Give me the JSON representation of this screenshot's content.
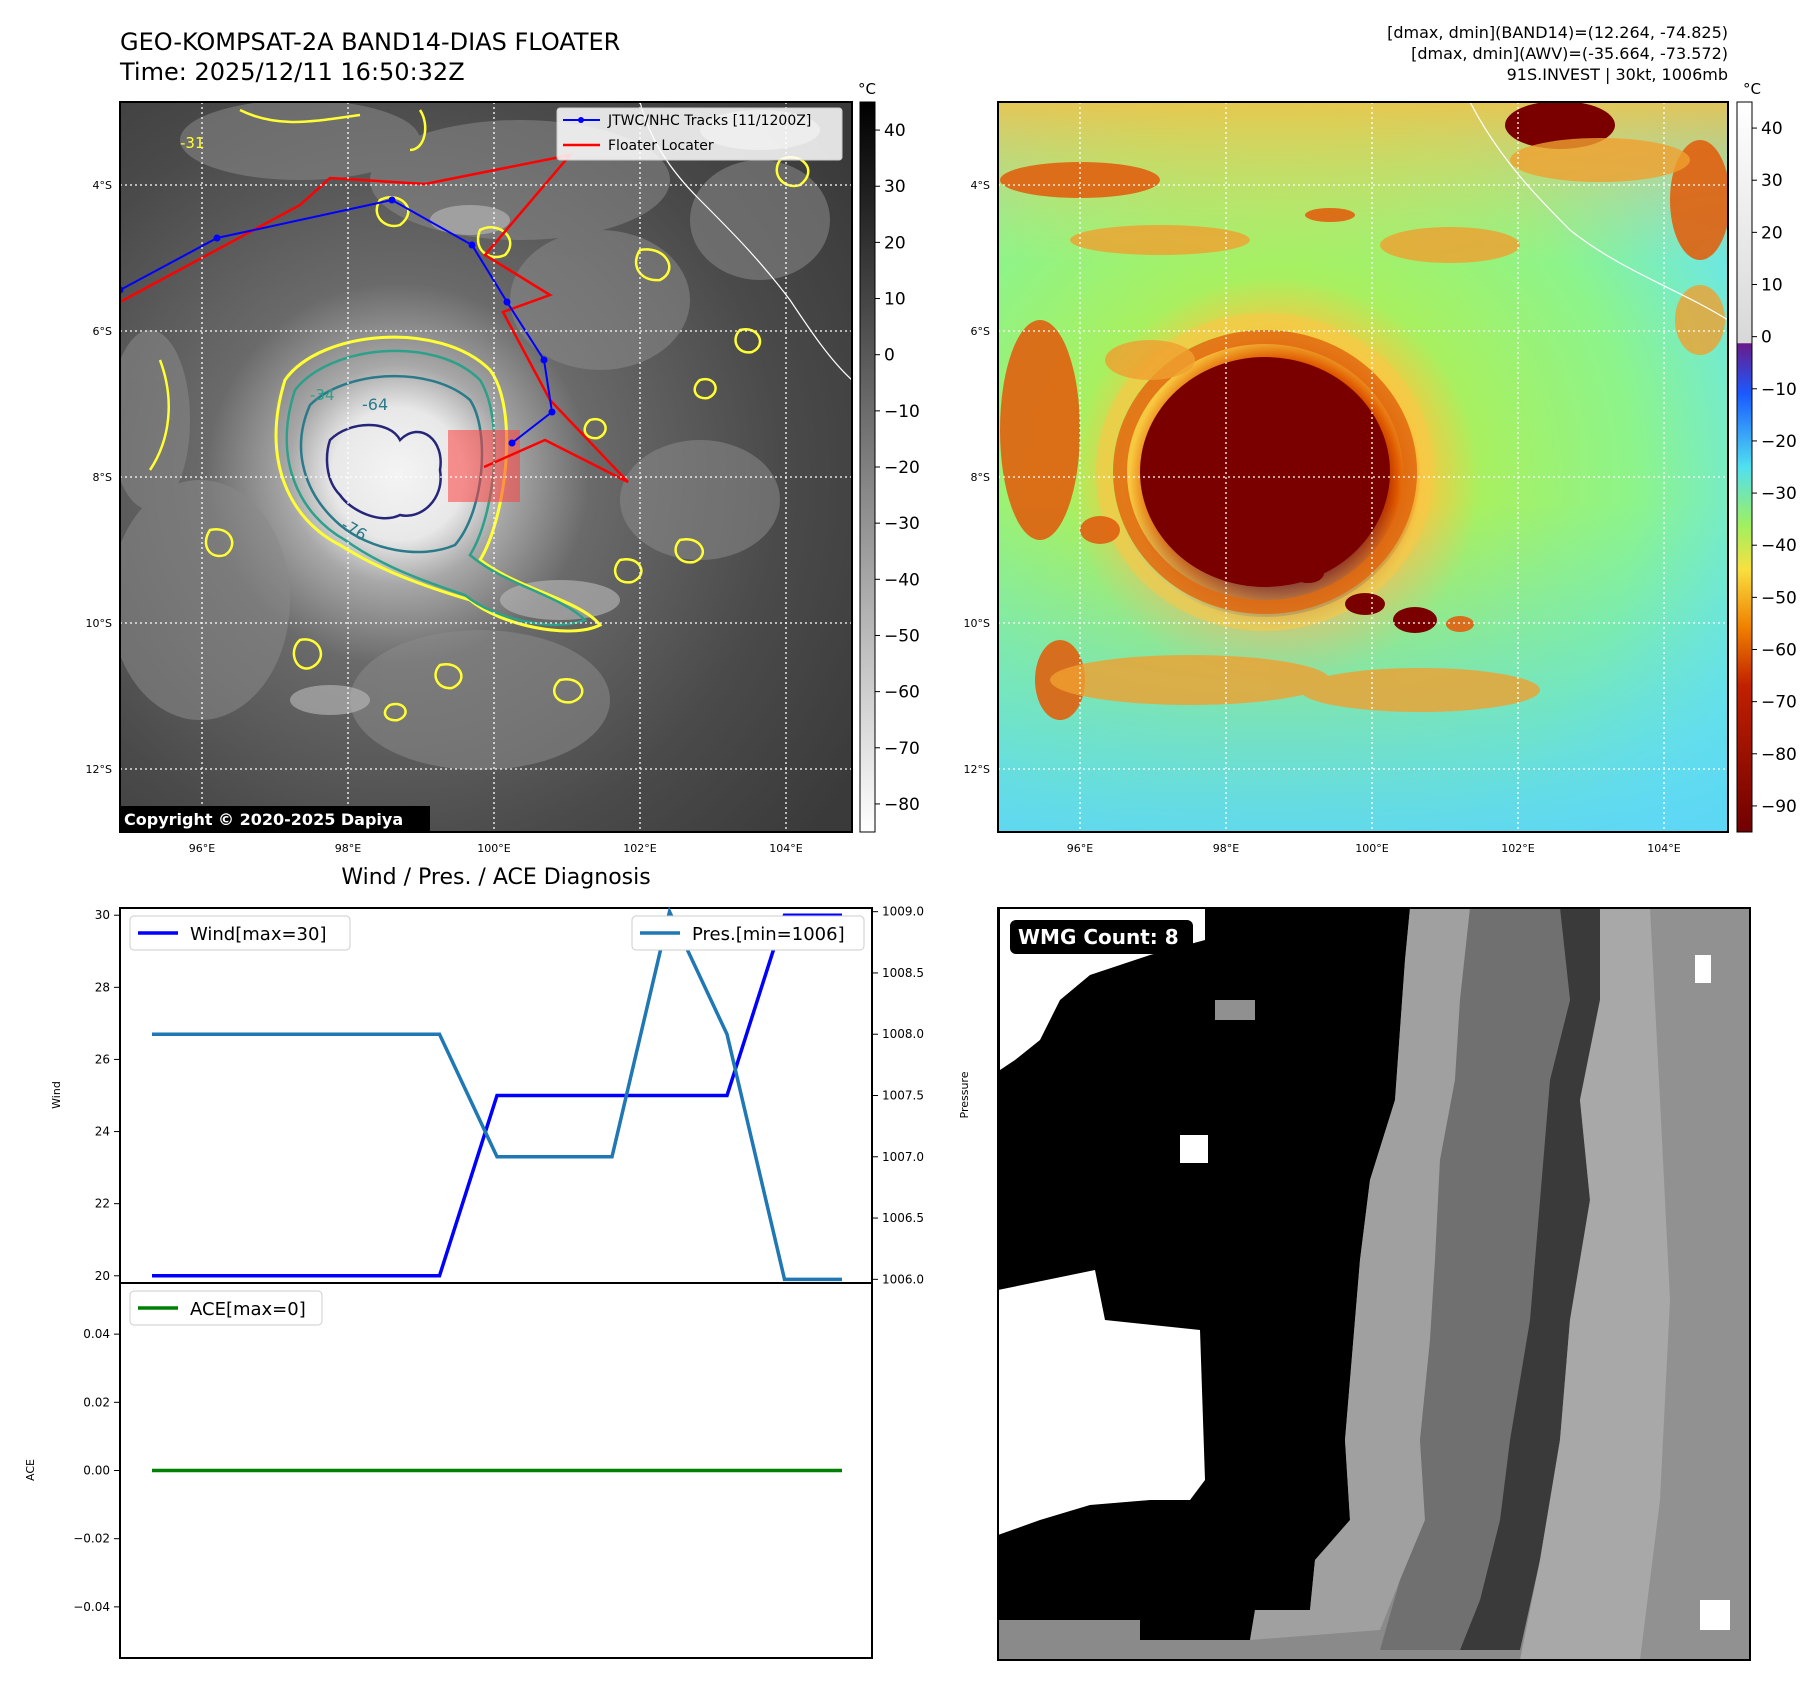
{
  "header": {
    "title": "GEO-KOMPSAT-2A BAND14-DIAS FLOATER",
    "time": "Time: 2025/12/11 16:50:32Z",
    "stat_band14": "[dmax, dmin](BAND14)=(12.264, -74.825)",
    "stat_awv": "[dmax, dmin](AWV)=(-35.664, -73.572)",
    "storm_info": "91S.INVEST | 30kt, 1006mb"
  },
  "ir_panel": {
    "lat_ticks": [
      "4°S",
      "6°S",
      "8°S",
      "10°S",
      "12°S"
    ],
    "lon_ticks": [
      "96°E",
      "98°E",
      "100°E",
      "102°E",
      "104°E"
    ],
    "legend": {
      "track": "JTWC/NHC Tracks [11/1200Z]",
      "floater": "Floater Locater"
    },
    "contour_labels": [
      "-31",
      "-34",
      "-64",
      "-76"
    ],
    "copyright": "Copyright © 2020-2025 Dapiya",
    "colorbar_unit": "°C",
    "colorbar_ticks": [
      "40",
      "30",
      "20",
      "10",
      "0",
      "−10",
      "−20",
      "−30",
      "−40",
      "−50",
      "−60",
      "−70",
      "−80"
    ],
    "colors": {
      "track": "#0000ff",
      "floater": "#ff0000",
      "contour_warm": "#ffff33",
      "contour_mid": "#2ca089",
      "contour_cold": "#26257a"
    }
  },
  "color_panel": {
    "lat_ticks": [
      "4°S",
      "6°S",
      "8°S",
      "10°S",
      "12°S"
    ],
    "lon_ticks": [
      "96°E",
      "98°E",
      "100°E",
      "102°E",
      "104°E"
    ],
    "colorbar_unit": "°C",
    "colorbar_ticks": [
      "40",
      "30",
      "20",
      "10",
      "0",
      "−10",
      "−20",
      "−30",
      "−40",
      "−50",
      "−60",
      "−70",
      "−80",
      "−90"
    ]
  },
  "chart_data": [
    {
      "type": "line",
      "title": "Wind / Pres. / ACE Diagnosis",
      "x": [
        0,
        1,
        2,
        3,
        4,
        5,
        6,
        7,
        8,
        9,
        10,
        11,
        12
      ],
      "series": [
        {
          "name": "Wind[max=30]",
          "axis": "left",
          "color": "#0000ff",
          "values": [
            20,
            20,
            20,
            20,
            20,
            20,
            25,
            25,
            25,
            25,
            25,
            30,
            30
          ]
        },
        {
          "name": "Pres.[min=1006]",
          "axis": "right",
          "color": "#1f77b4",
          "values": [
            1008,
            1008,
            1008,
            1008,
            1008,
            1008,
            1007,
            1007,
            1007,
            1009,
            1008,
            1006,
            1006
          ]
        }
      ],
      "ylabel": "Wind",
      "y2label": "Pressure",
      "ylim": [
        19.8,
        30.2
      ],
      "y2lim": [
        1005.97,
        1009.03
      ],
      "yticks": [
        "20",
        "22",
        "24",
        "26",
        "28",
        "30"
      ],
      "y2ticks": [
        "1006.0",
        "1006.5",
        "1007.0",
        "1007.5",
        "1008.0",
        "1008.5",
        "1009.0"
      ],
      "legend": [
        "upper-left",
        "upper-right"
      ]
    },
    {
      "type": "line",
      "x": [
        0,
        1,
        2,
        3,
        4,
        5,
        6,
        7,
        8,
        9,
        10,
        11,
        12
      ],
      "series": [
        {
          "name": "ACE[max=0]",
          "color": "#008000",
          "values": [
            0,
            0,
            0,
            0,
            0,
            0,
            0,
            0,
            0,
            0,
            0,
            0,
            0
          ]
        }
      ],
      "ylabel": "ACE",
      "ylim": [
        -0.055,
        0.055
      ],
      "yticks": [
        "0.04",
        "0.02",
        "0.00",
        "−0.02",
        "−0.04"
      ],
      "legend": "upper-left"
    }
  ],
  "wmg_panel": {
    "count_label": "WMG Count: 8"
  }
}
